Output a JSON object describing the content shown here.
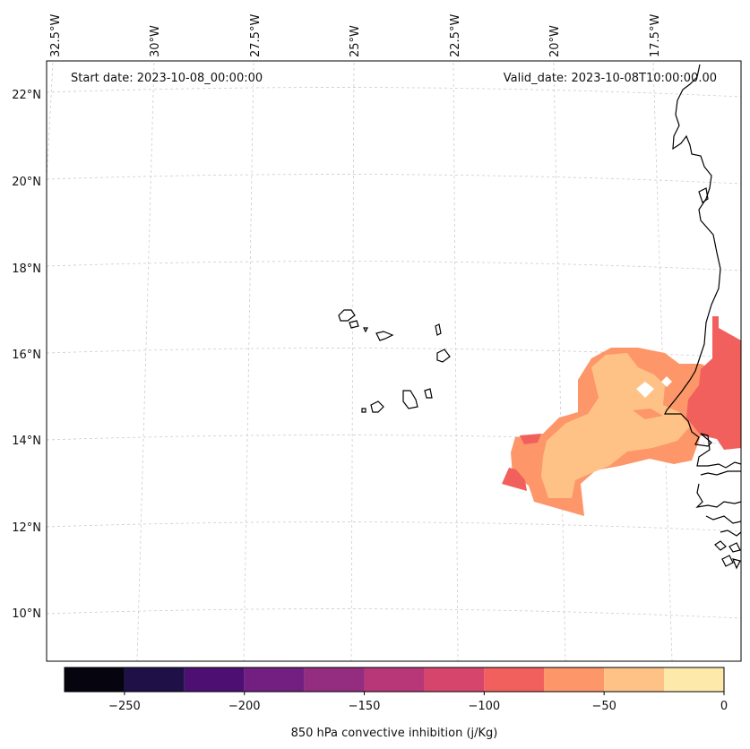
{
  "map": {
    "start_date_text": "Start date: 2023-10-08_00:00:00",
    "valid_date_text": "Valid_date: 2023-10-08T10:00:00.00",
    "lon_labels": [
      "32.5°W",
      "30°W",
      "27.5°W",
      "25°W",
      "22.5°W",
      "20°W",
      "17.5°W"
    ],
    "lat_labels": [
      "22°N",
      "20°N",
      "18°N",
      "16°N",
      "14°N",
      "12°N",
      "10°N"
    ],
    "coastline_color": "#000000",
    "gridline_color": "#cccccc"
  },
  "colorbar": {
    "label": "850 hPa convective inhibition (j/Kg)",
    "ticks": [
      "−250",
      "−200",
      "−150",
      "−100",
      "−50",
      "0"
    ],
    "levels": [
      -275,
      -250,
      -225,
      -200,
      -175,
      -150,
      -125,
      -100,
      -75,
      -50,
      -25,
      0
    ],
    "colors": [
      "#05040f",
      "#1f1147",
      "#4d0f72",
      "#721f81",
      "#942c80",
      "#b73779",
      "#d6456c",
      "#f1605d",
      "#fd9668",
      "#fec287",
      "#fde9a9"
    ]
  },
  "field": {
    "variable": "850 hPa convective inhibition",
    "units": "j/Kg",
    "region": "West African coast (Senegal / Mauritania / Gambia) and offshore Atlantic",
    "value_bands_present": [
      "-100 to -75",
      "-75 to -50",
      "-50 to -25"
    ]
  }
}
